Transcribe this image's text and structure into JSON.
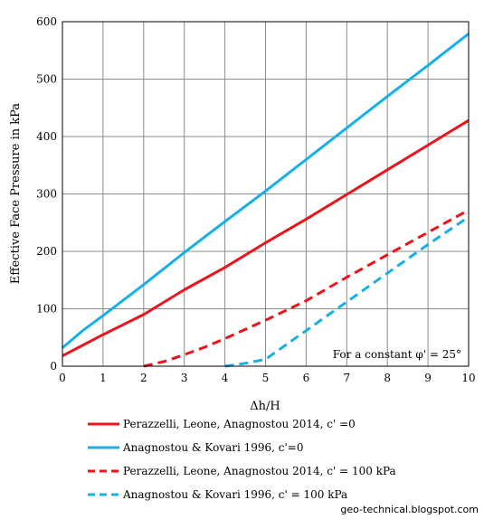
{
  "chart_data": {
    "type": "line",
    "title": "",
    "xlabel": "Δh/H",
    "ylabel": "Effective Face Pressure in kPa",
    "xlim": [
      0,
      10
    ],
    "ylim": [
      0,
      600
    ],
    "x_ticks": [
      0,
      1,
      2,
      3,
      4,
      5,
      6,
      7,
      8,
      9,
      10
    ],
    "y_ticks": [
      0,
      100,
      200,
      300,
      400,
      500,
      600
    ],
    "grid": true,
    "legend_position": "below-plot",
    "annotation": "For a constant φ' = 25°",
    "series": [
      {
        "name": "Perazzelli, Leone, Anagnostou 2014, c' =0",
        "color": "#e8151b",
        "dash": "solid",
        "x": [
          0,
          1,
          2,
          3,
          4,
          5,
          6,
          7,
          8,
          9,
          10
        ],
        "y": [
          18,
          55,
          90,
          133,
          172,
          215,
          256,
          299,
          342,
          385,
          428
        ]
      },
      {
        "name": "Anagnostou & Kovari 1996, c'=0",
        "color": "#16b0e6",
        "dash": "solid",
        "x": [
          0,
          0.5,
          1,
          2,
          3,
          4,
          5,
          6,
          7,
          8,
          9,
          10
        ],
        "y": [
          32,
          62,
          88,
          142,
          198,
          252,
          305,
          360,
          415,
          470,
          524,
          579
        ]
      },
      {
        "name": "Perazzelli, Leone, Anagnostou 2014, c' = 100 kPa",
        "color": "#e8151b",
        "dash": "dashed",
        "x": [
          2,
          2.5,
          3,
          3.5,
          4,
          5,
          6,
          7,
          8,
          9,
          10
        ],
        "y": [
          0,
          8,
          20,
          33,
          48,
          80,
          114,
          155,
          194,
          233,
          272
        ]
      },
      {
        "name": "Anagnostou & Kovari 1996, c' = 100 kPa",
        "color": "#16b0e6",
        "dash": "dashed",
        "x": [
          4,
          4.5,
          5,
          6,
          7,
          8,
          9,
          10
        ],
        "y": [
          0,
          5,
          12,
          62,
          112,
          162,
          212,
          260
        ]
      }
    ]
  },
  "credit": "geo-technical.blogspot.com"
}
